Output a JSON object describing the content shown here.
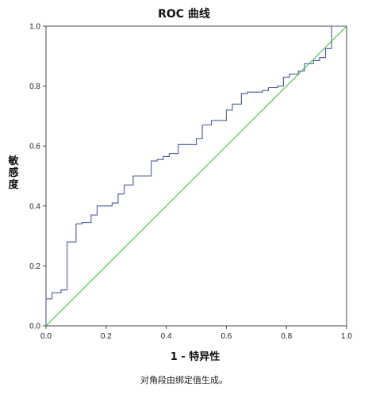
{
  "chart_data": {
    "type": "line",
    "title": "ROC 曲线",
    "xlabel": "1 - 特异性",
    "ylabel": "敏感度",
    "xlim": [
      0.0,
      1.0
    ],
    "ylim": [
      0.0,
      1.0
    ],
    "xticks": [
      "0.0",
      "0.2",
      "0.4",
      "0.6",
      "0.8",
      "1.0"
    ],
    "yticks": [
      "0.0",
      "0.2",
      "0.4",
      "0.6",
      "0.8",
      "1.0"
    ],
    "grid": false,
    "series": [
      {
        "role": "roc-curve",
        "color": "#4a5a9c",
        "points": [
          [
            0.0,
            0.0
          ],
          [
            0.0,
            0.09
          ],
          [
            0.02,
            0.09
          ],
          [
            0.02,
            0.11
          ],
          [
            0.05,
            0.11
          ],
          [
            0.05,
            0.12
          ],
          [
            0.07,
            0.12
          ],
          [
            0.07,
            0.28
          ],
          [
            0.1,
            0.28
          ],
          [
            0.1,
            0.34
          ],
          [
            0.12,
            0.34
          ],
          [
            0.12,
            0.345
          ],
          [
            0.15,
            0.345
          ],
          [
            0.15,
            0.37
          ],
          [
            0.17,
            0.37
          ],
          [
            0.17,
            0.4
          ],
          [
            0.22,
            0.4
          ],
          [
            0.22,
            0.41
          ],
          [
            0.24,
            0.41
          ],
          [
            0.24,
            0.44
          ],
          [
            0.26,
            0.44
          ],
          [
            0.26,
            0.47
          ],
          [
            0.29,
            0.47
          ],
          [
            0.29,
            0.5
          ],
          [
            0.35,
            0.5
          ],
          [
            0.35,
            0.55
          ],
          [
            0.37,
            0.55
          ],
          [
            0.37,
            0.555
          ],
          [
            0.39,
            0.555
          ],
          [
            0.39,
            0.565
          ],
          [
            0.41,
            0.565
          ],
          [
            0.41,
            0.575
          ],
          [
            0.44,
            0.575
          ],
          [
            0.44,
            0.605
          ],
          [
            0.5,
            0.605
          ],
          [
            0.5,
            0.625
          ],
          [
            0.52,
            0.625
          ],
          [
            0.52,
            0.67
          ],
          [
            0.55,
            0.67
          ],
          [
            0.55,
            0.685
          ],
          [
            0.6,
            0.685
          ],
          [
            0.6,
            0.72
          ],
          [
            0.62,
            0.72
          ],
          [
            0.62,
            0.74
          ],
          [
            0.65,
            0.74
          ],
          [
            0.65,
            0.775
          ],
          [
            0.67,
            0.775
          ],
          [
            0.67,
            0.78
          ],
          [
            0.72,
            0.78
          ],
          [
            0.72,
            0.785
          ],
          [
            0.74,
            0.785
          ],
          [
            0.74,
            0.795
          ],
          [
            0.77,
            0.795
          ],
          [
            0.77,
            0.8
          ],
          [
            0.79,
            0.8
          ],
          [
            0.79,
            0.83
          ],
          [
            0.81,
            0.83
          ],
          [
            0.81,
            0.84
          ],
          [
            0.84,
            0.84
          ],
          [
            0.84,
            0.85
          ],
          [
            0.86,
            0.85
          ],
          [
            0.86,
            0.875
          ],
          [
            0.89,
            0.875
          ],
          [
            0.89,
            0.885
          ],
          [
            0.91,
            0.885
          ],
          [
            0.91,
            0.895
          ],
          [
            0.93,
            0.895
          ],
          [
            0.93,
            0.925
          ],
          [
            0.95,
            0.925
          ],
          [
            0.95,
            1.0
          ],
          [
            1.0,
            1.0
          ]
        ]
      },
      {
        "role": "reference-line",
        "color": "#3fbf3f",
        "points": [
          [
            0.0,
            0.0
          ],
          [
            1.0,
            1.0
          ]
        ]
      }
    ]
  },
  "footnote": "对角段由绑定值生成。"
}
